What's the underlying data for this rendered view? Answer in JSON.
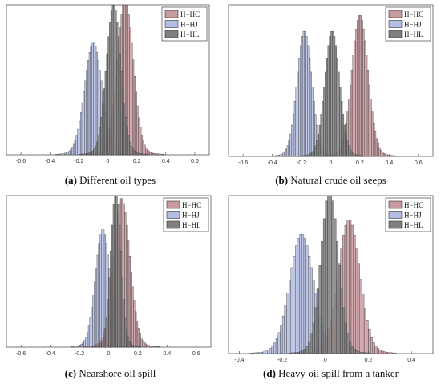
{
  "colors": {
    "H-HC": "#c99aa0",
    "H-HJ": "#b3bde3",
    "H-HL": "#808080",
    "edge": "#333333"
  },
  "chart_data": [
    {
      "type": "bar",
      "panel_label": "(a)",
      "caption": "Different oil types",
      "xlim": [
        -0.7,
        0.7
      ],
      "xticks": [
        "-0.6",
        "-0.4",
        "-0.2",
        "0",
        "0.2",
        "0.4",
        "0.6"
      ],
      "legend_position": "top-right",
      "grid": false,
      "series": [
        {
          "name": "H−HC",
          "center": 0.12,
          "spread": 0.055,
          "peak": 1.0
        },
        {
          "name": "H−HJ",
          "center": -0.1,
          "spread": 0.06,
          "peak": 0.72
        },
        {
          "name": "H−HL",
          "center": 0.04,
          "spread": 0.05,
          "peak": 0.97
        }
      ]
    },
    {
      "type": "bar",
      "panel_label": "(b)",
      "caption": "Natural crude oil seeps",
      "xlim": [
        -0.7,
        0.7
      ],
      "xticks": [
        "-0.6",
        "-0.4",
        "-0.2",
        "0",
        "0.2",
        "0.4",
        "0.6"
      ],
      "legend_position": "top-right",
      "grid": false,
      "series": [
        {
          "name": "H−HC",
          "center": 0.2,
          "spread": 0.055,
          "peak": 0.9
        },
        {
          "name": "H−HJ",
          "center": -0.18,
          "spread": 0.05,
          "peak": 0.8
        },
        {
          "name": "H−HL",
          "center": 0.01,
          "spread": 0.05,
          "peak": 0.8
        }
      ]
    },
    {
      "type": "bar",
      "panel_label": "(c)",
      "caption": "Nearshore oil spill",
      "xlim": [
        -0.7,
        0.7
      ],
      "xticks": [
        "-0.6",
        "-0.4",
        "-0.2",
        "0",
        "0.2",
        "0.4",
        "0.6"
      ],
      "legend_position": "top-right",
      "grid": false,
      "series": [
        {
          "name": "H−HC",
          "center": 0.09,
          "spread": 0.055,
          "peak": 0.95
        },
        {
          "name": "H−HJ",
          "center": -0.04,
          "spread": 0.05,
          "peak": 0.75
        },
        {
          "name": "H−HL",
          "center": 0.05,
          "spread": 0.035,
          "peak": 1.0
        }
      ]
    },
    {
      "type": "bar",
      "panel_label": "(d)",
      "caption": "Heavy oil spill from a tanker",
      "xlim": [
        -0.45,
        0.5
      ],
      "xticks": [
        "-0.4",
        "-0.2",
        "0",
        "0.2",
        "0.4"
      ],
      "legend_position": "top-right",
      "grid": false,
      "series": [
        {
          "name": "H−HC",
          "center": 0.11,
          "spread": 0.05,
          "peak": 0.82
        },
        {
          "name": "H−HJ",
          "center": -0.11,
          "spread": 0.055,
          "peak": 0.73
        },
        {
          "name": "H−HL",
          "center": 0.02,
          "spread": 0.04,
          "peak": 1.0
        }
      ]
    }
  ]
}
